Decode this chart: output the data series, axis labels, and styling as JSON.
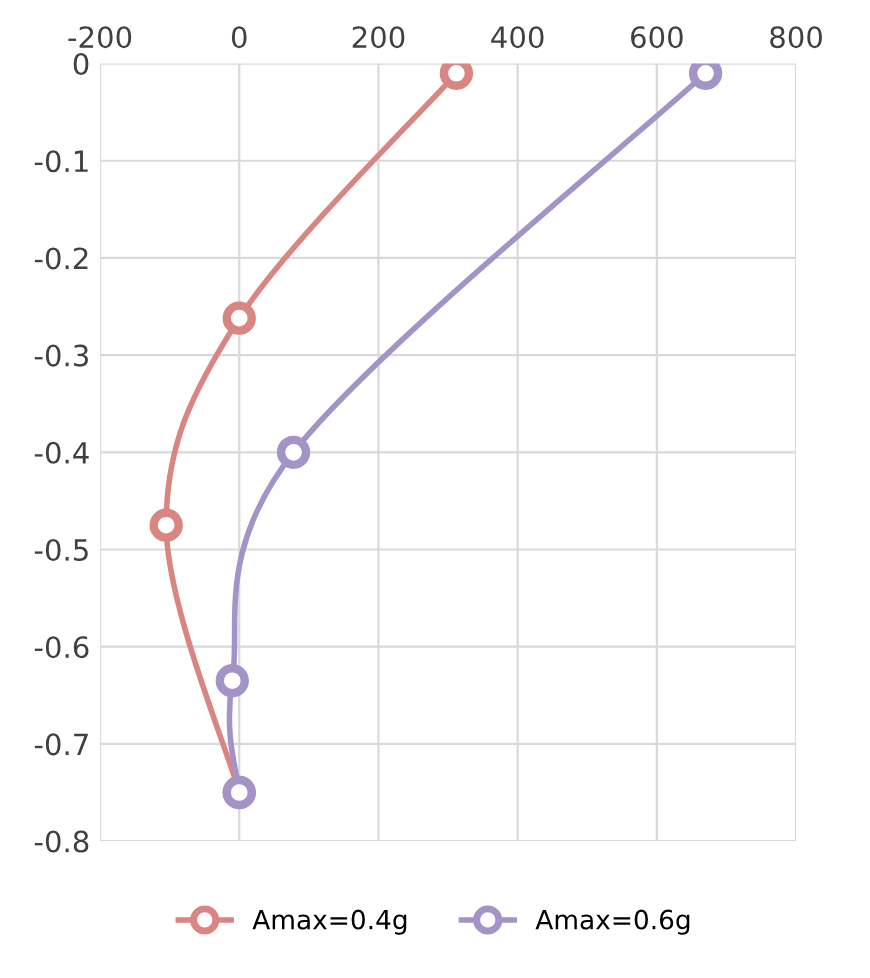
{
  "chart_data": {
    "type": "line",
    "series": [
      {
        "name": "Amax=0.4g",
        "color": "#d98582",
        "x": [
          312,
          0,
          -105,
          0
        ],
        "values": [
          -0.01,
          -0.262,
          -0.475,
          -0.75
        ]
      },
      {
        "name": "Amax=0.6g",
        "color": "#a393c6",
        "x": [
          670,
          78,
          -10,
          0
        ],
        "values": [
          -0.01,
          -0.4,
          -0.635,
          -0.75
        ]
      }
    ],
    "xlim": [
      -200,
      800
    ],
    "xticks": [
      -200,
      0,
      200,
      400,
      600,
      800
    ],
    "ylim": [
      -0.8,
      0
    ],
    "yticks": [
      -0.8,
      -0.7,
      -0.6,
      -0.5,
      -0.4,
      -0.3,
      -0.2,
      -0.1,
      0
    ],
    "grid": true,
    "legend": "bottom",
    "marker": "circle",
    "line_style": "solid"
  }
}
